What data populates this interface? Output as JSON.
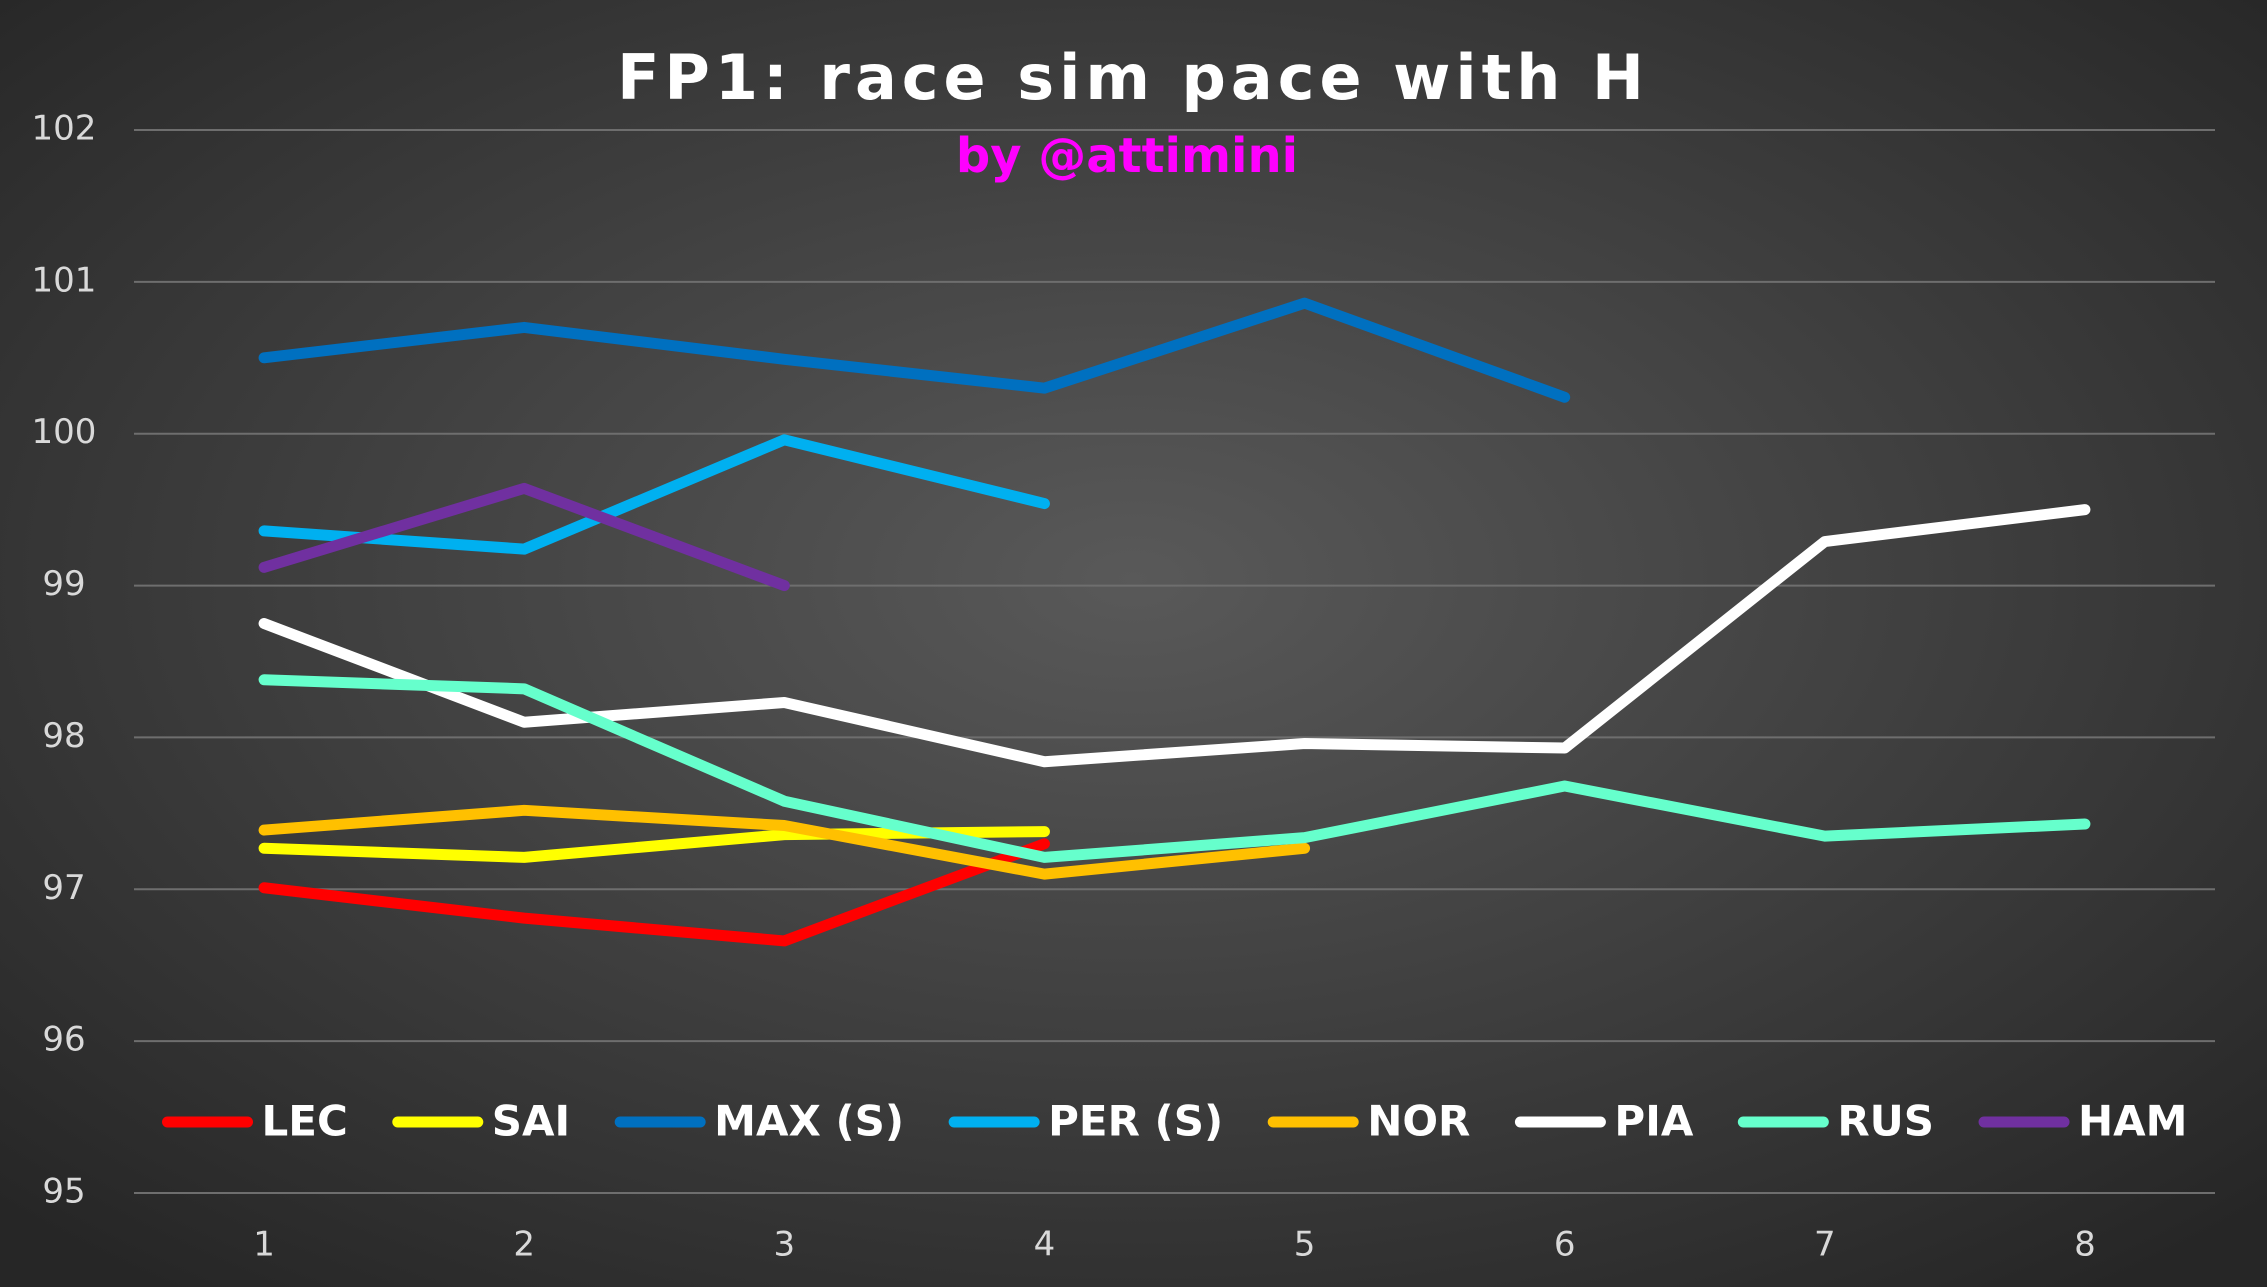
{
  "chart_data": {
    "type": "line",
    "title": "FP1: race sim pace with H",
    "subtitle": "by @attimini",
    "categories": [
      1,
      2,
      3,
      4,
      5,
      6,
      7,
      8
    ],
    "ylim": [
      95,
      102
    ],
    "yticks": [
      95,
      96,
      97,
      98,
      99,
      100,
      101,
      102
    ],
    "grid": true,
    "legend": "bottom",
    "series": [
      {
        "name": "LEC",
        "color": "#ff0000",
        "values": [
          97.01,
          96.81,
          96.66,
          97.3,
          null,
          null,
          null,
          null
        ]
      },
      {
        "name": "SAI",
        "color": "#ffff00",
        "values": [
          97.27,
          97.21,
          97.36,
          97.38,
          null,
          null,
          null,
          null
        ]
      },
      {
        "name": "MAX (S)",
        "color": "#0070c0",
        "values": [
          100.5,
          100.7,
          100.49,
          100.3,
          100.86,
          100.24,
          null,
          null
        ]
      },
      {
        "name": "PER (S)",
        "color": "#00b0f0",
        "values": [
          99.36,
          99.24,
          99.96,
          99.54,
          null,
          null,
          null,
          null
        ]
      },
      {
        "name": "NOR",
        "color": "#ffc000",
        "values": [
          97.39,
          97.52,
          97.42,
          97.1,
          97.27,
          null,
          null,
          null
        ]
      },
      {
        "name": "PIA",
        "color": "#ffffff",
        "values": [
          98.75,
          98.1,
          98.23,
          97.84,
          97.96,
          97.93,
          99.29,
          99.5
        ]
      },
      {
        "name": "RUS",
        "color": "#66ffcc",
        "values": [
          98.38,
          98.32,
          97.58,
          97.21,
          97.34,
          97.68,
          97.35,
          97.43
        ]
      },
      {
        "name": "HAM",
        "color": "#7030a0",
        "values": [
          99.12,
          99.64,
          99.0,
          null,
          null,
          null,
          null,
          null
        ]
      }
    ]
  }
}
